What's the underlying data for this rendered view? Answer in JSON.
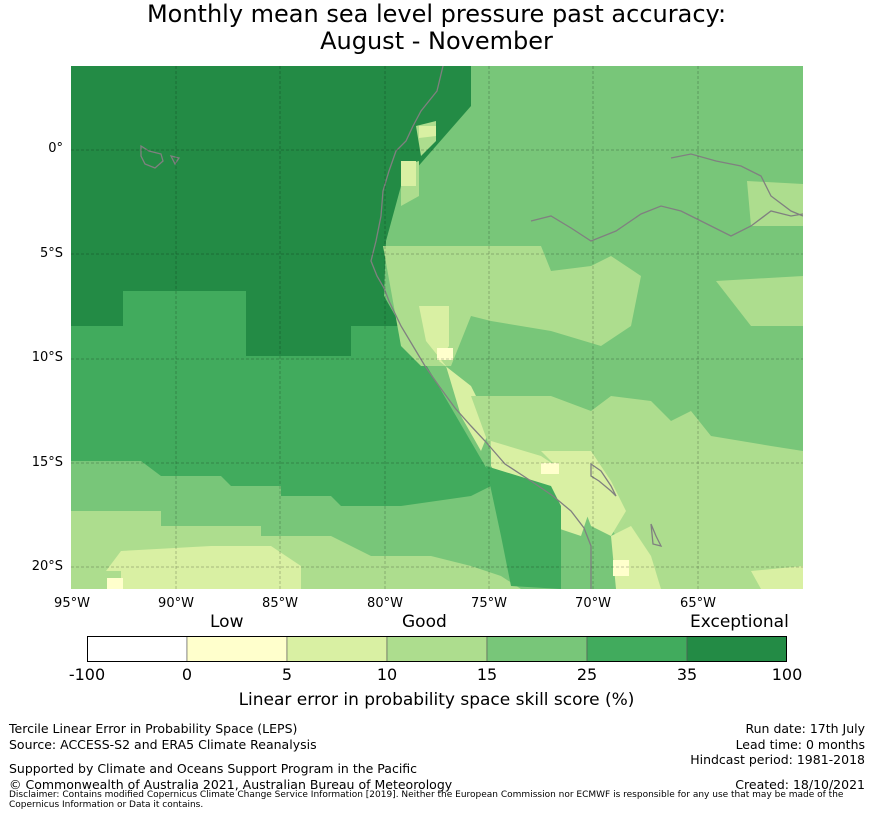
{
  "title": {
    "line1": "Monthly mean sea level pressure past accuracy:",
    "line2": "August - November"
  },
  "map": {
    "lat_labels": [
      "0°",
      "5°S",
      "10°S",
      "15°S",
      "20°S"
    ],
    "lon_labels": [
      "95°W",
      "90°W",
      "85°W",
      "80°W",
      "75°W",
      "70°W",
      "65°W"
    ],
    "gridlines": true,
    "palette": {
      "exceptional": "#238b45",
      "s25_35": "#41ab5d",
      "s15_25": "#78c679",
      "s10_15": "#addd8e",
      "s5_10": "#d9f0a3",
      "s0_5": "#ffffcc",
      "land_outline": "#808080"
    }
  },
  "colorbar": {
    "category_labels": [
      "Low",
      "Good",
      "Exceptional"
    ],
    "ticks": [
      "-100",
      "0",
      "5",
      "10",
      "15",
      "25",
      "35",
      "100"
    ],
    "colors": [
      "#ffffff",
      "#ffffcc",
      "#d9f0a3",
      "#addd8e",
      "#78c679",
      "#41ab5d",
      "#238b45"
    ],
    "label": "Linear error in probability space skill score (%)"
  },
  "footer": {
    "leps": "Tercile Linear Error in Probability Space (LEPS)",
    "source": "Source: ACCESS-S2 and ERA5 Climate Reanalysis",
    "supported": "Supported by Climate and Oceans Support Program in the Pacific",
    "copyright": "© Commonwealth of Australia 2021, Australian Bureau of Meteorology",
    "run_date": "Run date: 17th July",
    "lead_time": "Lead time: 0 months",
    "hindcast": "Hindcast period: 1981-2018",
    "created": "Created: 18/10/2021",
    "disclaimer": "Disclaimer: Contains modified Copernicus Climate Change Service Information [2019]. Neither the European Commission nor ECMWF is responsible for any use that may be made of the Copernicus Information or Data it contains."
  }
}
